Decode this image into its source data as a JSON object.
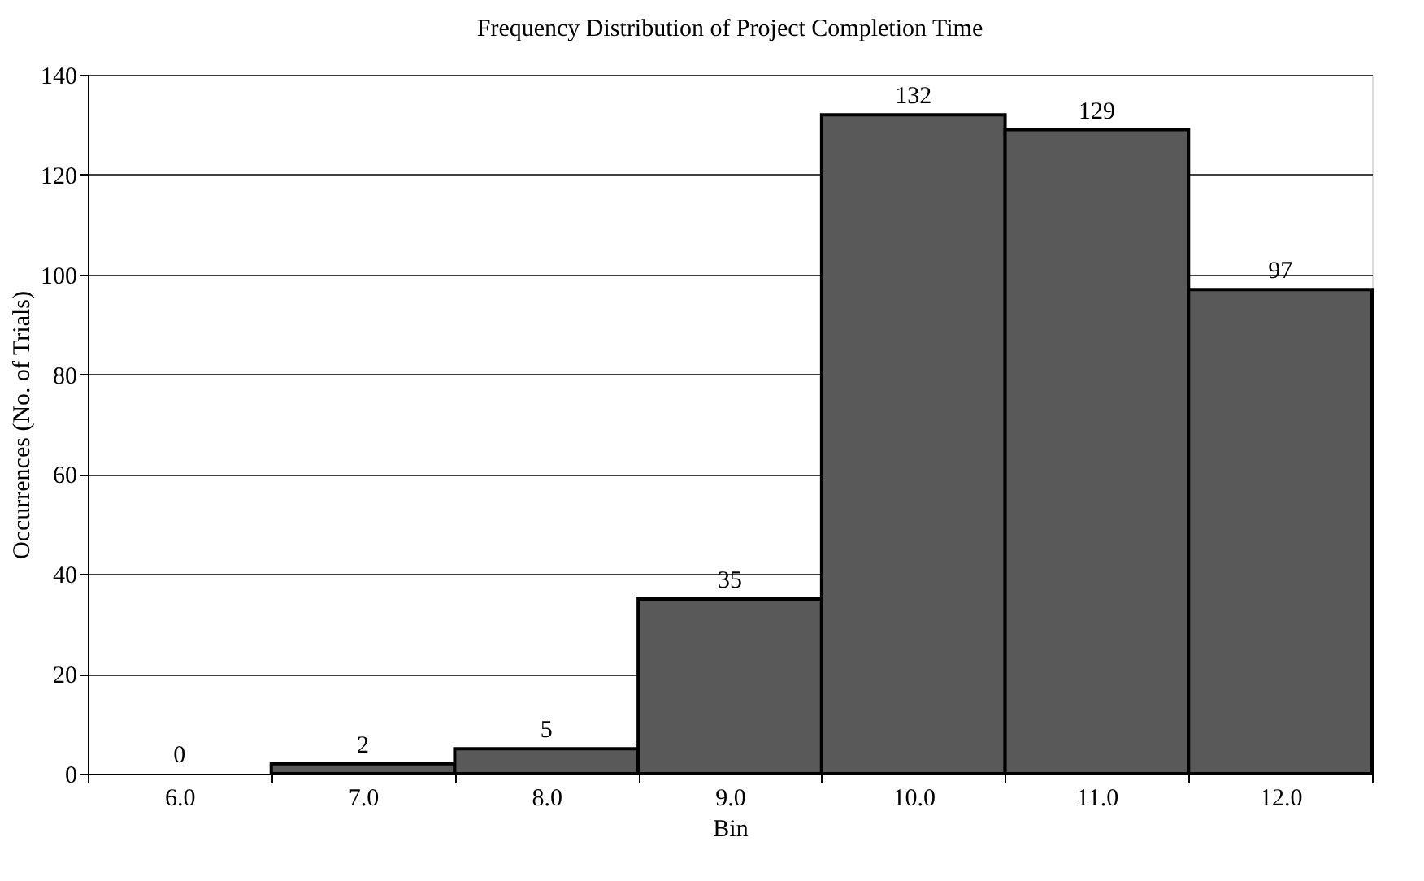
{
  "chart_data": {
    "type": "bar",
    "title": "Frequency Distribution of Project Completion Time",
    "xlabel": "Bin",
    "ylabel": "Occurrences (No. of Trials)",
    "categories": [
      "6.0",
      "7.0",
      "8.0",
      "9.0",
      "10.0",
      "11.0",
      "12.0"
    ],
    "values": [
      0,
      2,
      5,
      35,
      132,
      129,
      97
    ],
    "color": "#595959",
    "ylim": [
      0,
      140
    ],
    "yticks": [
      0,
      20,
      40,
      60,
      80,
      100,
      120,
      140
    ],
    "grid": "y",
    "data_labels": true
  }
}
